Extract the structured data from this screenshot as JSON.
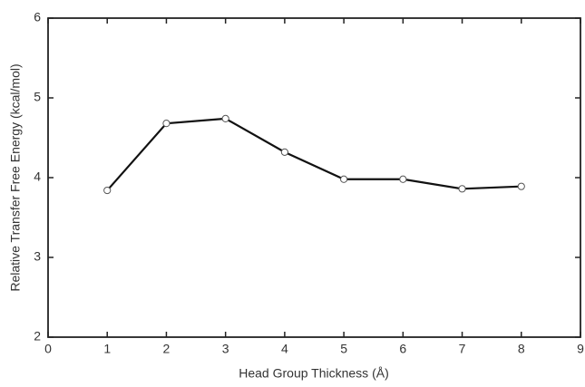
{
  "chart_data": {
    "type": "line",
    "x_label": "Head Group Thickness (Å)",
    "y_label": "Relative Transfer Free Energy (kcal/mol)",
    "series": [
      {
        "color": "#111111",
        "x": [
          1,
          2,
          3,
          4,
          5,
          6,
          7,
          8
        ],
        "values": [
          3.84,
          4.68,
          4.74,
          4.32,
          3.98,
          3.98,
          3.86,
          3.89
        ]
      }
    ],
    "xlim": [
      0,
      9
    ],
    "xticks": [
      0,
      1,
      2,
      3,
      4,
      5,
      6,
      7,
      8,
      9
    ],
    "ylim": [
      2,
      6
    ],
    "yticks": [
      2,
      3,
      4,
      5,
      6
    ]
  }
}
